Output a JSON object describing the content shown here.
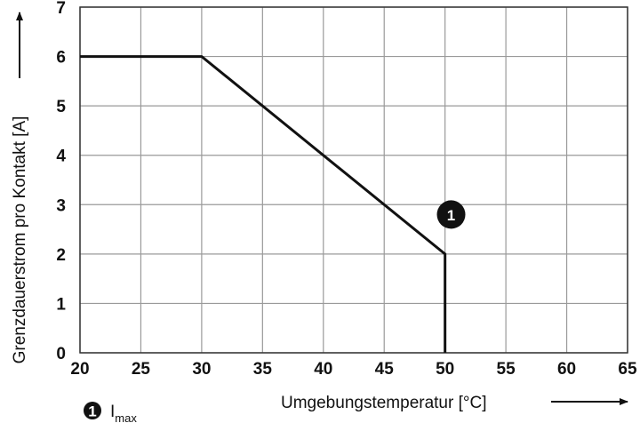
{
  "chart_data": {
    "type": "line",
    "xlabel": "Umgebungstemperatur [°C]",
    "ylabel": "Grenzdauerstrom pro Kontakt [A]",
    "xlim": [
      20,
      65
    ],
    "ylim": [
      0,
      7
    ],
    "x_ticks": [
      "20",
      "25",
      "30",
      "35",
      "40",
      "45",
      "50",
      "55",
      "60",
      "65"
    ],
    "y_ticks": [
      "0",
      "1",
      "2",
      "3",
      "4",
      "5",
      "6",
      "7"
    ],
    "grid": true,
    "series": [
      {
        "x": [
          20,
          30,
          50,
          50
        ],
        "y": [
          6,
          6,
          2,
          0
        ]
      }
    ],
    "annotations": [
      {
        "label": "1",
        "x": 50.5,
        "y": 2.8,
        "shape": "filled-circle"
      }
    ],
    "legend": {
      "marker": "1",
      "label": "I",
      "label_sub": "max",
      "placement": "bottom-left"
    }
  }
}
